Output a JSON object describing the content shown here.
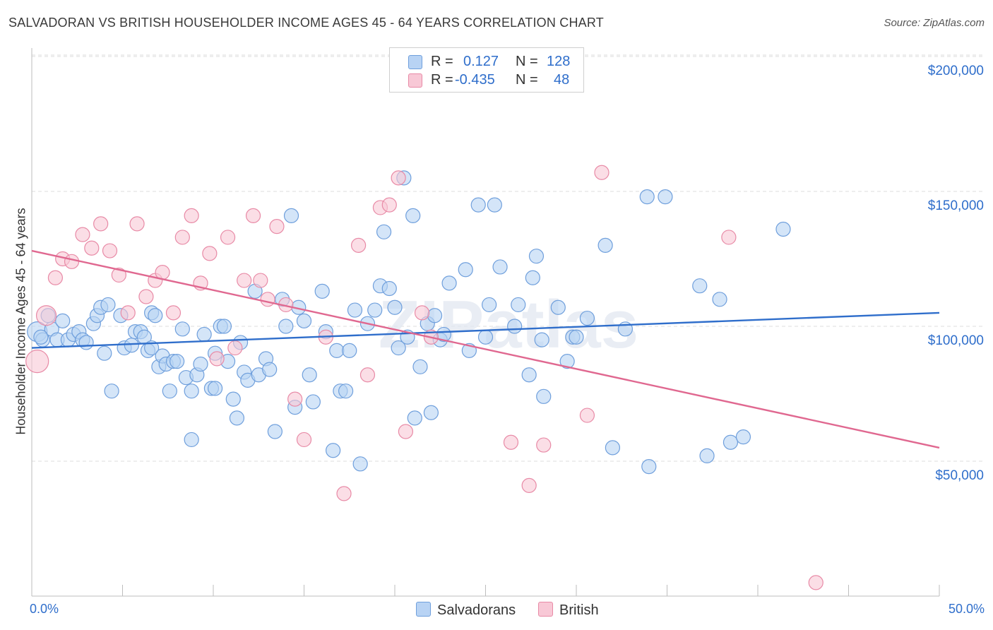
{
  "header": {
    "title": "SALVADORAN VS BRITISH HOUSEHOLDER INCOME AGES 45 - 64 YEARS CORRELATION CHART",
    "source": "Source: ZipAtlas.com"
  },
  "legend_box": {
    "rows": [
      {
        "r_label": "R =",
        "r_value": "0.127",
        "n_label": "N =",
        "n_value": "128"
      },
      {
        "r_label": "R =",
        "r_value": "-0.435",
        "n_label": "N =",
        "n_value": "48"
      }
    ]
  },
  "bottom_legend": {
    "salvadorans": "Salvadorans",
    "british": "British"
  },
  "watermark": "ZIPatlas",
  "colors": {
    "salvadoran_fill": "#b8d3f4",
    "salvadoran_stroke": "#6f9fdc",
    "salvadoran_line": "#2f6ecb",
    "british_fill": "#f8c8d6",
    "british_stroke": "#e88aa6",
    "british_line": "#e06890",
    "axis_text": "#2f6ecb",
    "grid": "#dcdcdc"
  },
  "chart_data": {
    "type": "scatter",
    "title": "SALVADORAN VS BRITISH HOUSEHOLDER INCOME AGES 45 - 64 YEARS CORRELATION CHART",
    "xlabel": "",
    "ylabel": "Householder Income Ages 45 - 64 years",
    "xlim": [
      0,
      50
    ],
    "ylim": [
      0,
      210000
    ],
    "x_tick_labels": [
      "0.0%",
      "50.0%"
    ],
    "y_ticks": [
      50000,
      100000,
      150000,
      200000
    ],
    "y_tick_labels": [
      "$50,000",
      "$100,000",
      "$150,000",
      "$200,000"
    ],
    "grid": true,
    "series": [
      {
        "name": "Salvadorans",
        "r": 0.127,
        "n": 128,
        "trend": [
          [
            0,
            92000
          ],
          [
            50,
            105000
          ]
        ],
        "points": [
          [
            0.3,
            98000,
            14
          ],
          [
            0.6,
            95000,
            10
          ],
          [
            0.9,
            104000,
            10
          ],
          [
            1.1,
            99000,
            10
          ],
          [
            1.4,
            95000,
            10
          ],
          [
            1.7,
            102000,
            10
          ],
          [
            2.0,
            95000,
            10
          ],
          [
            2.3,
            97000,
            10
          ],
          [
            2.6,
            98000,
            10
          ],
          [
            2.8,
            95000,
            10
          ],
          [
            3.0,
            94000,
            10
          ],
          [
            3.4,
            101000,
            10
          ],
          [
            3.6,
            104000,
            10
          ],
          [
            3.8,
            107000,
            10
          ],
          [
            4.0,
            90000,
            10
          ],
          [
            4.2,
            108000,
            10
          ],
          [
            4.4,
            76000,
            10
          ],
          [
            4.9,
            104000,
            10
          ],
          [
            5.1,
            92000,
            10
          ],
          [
            5.5,
            93000,
            10
          ],
          [
            5.7,
            98000,
            10
          ],
          [
            6.0,
            98000,
            10
          ],
          [
            6.2,
            96000,
            10
          ],
          [
            6.4,
            91000,
            10
          ],
          [
            6.6,
            92000,
            10
          ],
          [
            6.6,
            105000,
            10
          ],
          [
            6.8,
            104000,
            10
          ],
          [
            7.0,
            85000,
            10
          ],
          [
            7.2,
            89000,
            10
          ],
          [
            7.4,
            86000,
            10
          ],
          [
            7.6,
            76000,
            10
          ],
          [
            7.8,
            87000,
            10
          ],
          [
            8.0,
            87000,
            10
          ],
          [
            8.3,
            99000,
            10
          ],
          [
            8.5,
            81000,
            10
          ],
          [
            8.8,
            76000,
            10
          ],
          [
            8.8,
            58000,
            10
          ],
          [
            9.1,
            82000,
            10
          ],
          [
            9.3,
            86000,
            10
          ],
          [
            9.5,
            97000,
            10
          ],
          [
            9.9,
            77000,
            10
          ],
          [
            10.1,
            90000,
            10
          ],
          [
            10.1,
            77000,
            10
          ],
          [
            10.4,
            100000,
            10
          ],
          [
            10.6,
            100000,
            10
          ],
          [
            10.8,
            87000,
            10
          ],
          [
            11.1,
            73000,
            10
          ],
          [
            11.3,
            66000,
            10
          ],
          [
            11.5,
            94000,
            10
          ],
          [
            11.7,
            83000,
            10
          ],
          [
            11.9,
            80000,
            10
          ],
          [
            12.3,
            113000,
            10
          ],
          [
            12.5,
            82000,
            10
          ],
          [
            12.9,
            88000,
            10
          ],
          [
            13.1,
            84000,
            10
          ],
          [
            13.4,
            61000,
            10
          ],
          [
            13.8,
            110000,
            10
          ],
          [
            14.0,
            100000,
            10
          ],
          [
            14.3,
            141000,
            10
          ],
          [
            14.5,
            70000,
            10
          ],
          [
            14.7,
            107000,
            10
          ],
          [
            15.0,
            102000,
            10
          ],
          [
            15.3,
            82000,
            10
          ],
          [
            15.5,
            72000,
            10
          ],
          [
            16.0,
            113000,
            10
          ],
          [
            16.2,
            98000,
            10
          ],
          [
            16.6,
            54000,
            10
          ],
          [
            16.8,
            91000,
            10
          ],
          [
            17.0,
            76000,
            10
          ],
          [
            17.3,
            76000,
            10
          ],
          [
            17.5,
            91000,
            10
          ],
          [
            17.8,
            106000,
            10
          ],
          [
            18.1,
            49000,
            10
          ],
          [
            18.5,
            101000,
            10
          ],
          [
            18.9,
            106000,
            10
          ],
          [
            19.2,
            115000,
            10
          ],
          [
            19.4,
            135000,
            10
          ],
          [
            19.7,
            114000,
            10
          ],
          [
            20.0,
            107000,
            10
          ],
          [
            20.2,
            92000,
            10
          ],
          [
            20.5,
            155000,
            10
          ],
          [
            20.7,
            96000,
            10
          ],
          [
            21.0,
            141000,
            10
          ],
          [
            21.1,
            66000,
            10
          ],
          [
            21.4,
            85000,
            10
          ],
          [
            21.8,
            101000,
            10
          ],
          [
            22.0,
            68000,
            10
          ],
          [
            22.2,
            104000,
            10
          ],
          [
            22.5,
            95000,
            10
          ],
          [
            22.7,
            97000,
            10
          ],
          [
            23.0,
            116000,
            10
          ],
          [
            23.9,
            121000,
            10
          ],
          [
            24.1,
            91000,
            10
          ],
          [
            24.6,
            145000,
            10
          ],
          [
            25.0,
            96000,
            10
          ],
          [
            25.2,
            108000,
            10
          ],
          [
            25.5,
            145000,
            10
          ],
          [
            25.8,
            122000,
            10
          ],
          [
            26.6,
            100000,
            10
          ],
          [
            26.8,
            108000,
            10
          ],
          [
            27.4,
            82000,
            10
          ],
          [
            27.6,
            118000,
            10
          ],
          [
            27.8,
            126000,
            10
          ],
          [
            28.1,
            95000,
            10
          ],
          [
            28.2,
            74000,
            10
          ],
          [
            29.0,
            107000,
            10
          ],
          [
            29.5,
            87000,
            10
          ],
          [
            29.8,
            96000,
            10
          ],
          [
            30.0,
            96000,
            10
          ],
          [
            30.6,
            103000,
            10
          ],
          [
            31.6,
            130000,
            10
          ],
          [
            32.0,
            55000,
            10
          ],
          [
            32.7,
            99000,
            10
          ],
          [
            33.9,
            148000,
            10
          ],
          [
            34.0,
            48000,
            10
          ],
          [
            34.9,
            148000,
            10
          ],
          [
            36.8,
            115000,
            10
          ],
          [
            37.2,
            52000,
            10
          ],
          [
            37.9,
            110000,
            10
          ],
          [
            38.5,
            57000,
            10
          ],
          [
            39.2,
            59000,
            10
          ],
          [
            41.4,
            136000,
            10
          ],
          [
            0.5,
            96000,
            10
          ]
        ]
      },
      {
        "name": "British",
        "r": -0.435,
        "n": 48,
        "trend": [
          [
            0,
            128000
          ],
          [
            50,
            55000
          ]
        ],
        "points": [
          [
            0.3,
            87000,
            16
          ],
          [
            0.8,
            104000,
            14
          ],
          [
            1.3,
            118000,
            10
          ],
          [
            1.7,
            125000,
            10
          ],
          [
            2.2,
            124000,
            10
          ],
          [
            2.8,
            134000,
            10
          ],
          [
            3.3,
            129000,
            10
          ],
          [
            3.8,
            138000,
            10
          ],
          [
            4.3,
            128000,
            10
          ],
          [
            4.8,
            119000,
            10
          ],
          [
            5.3,
            105000,
            10
          ],
          [
            5.8,
            138000,
            10
          ],
          [
            6.3,
            111000,
            10
          ],
          [
            6.8,
            117000,
            10
          ],
          [
            7.2,
            120000,
            10
          ],
          [
            7.8,
            105000,
            10
          ],
          [
            8.3,
            133000,
            10
          ],
          [
            8.8,
            141000,
            10
          ],
          [
            9.3,
            116000,
            10
          ],
          [
            9.8,
            127000,
            10
          ],
          [
            10.2,
            88000,
            10
          ],
          [
            10.8,
            133000,
            10
          ],
          [
            11.2,
            92000,
            10
          ],
          [
            11.7,
            117000,
            10
          ],
          [
            12.2,
            141000,
            10
          ],
          [
            12.6,
            117000,
            10
          ],
          [
            13.0,
            110000,
            10
          ],
          [
            13.5,
            137000,
            10
          ],
          [
            14.0,
            108000,
            10
          ],
          [
            14.5,
            73000,
            10
          ],
          [
            15.0,
            58000,
            10
          ],
          [
            16.2,
            96000,
            10
          ],
          [
            17.2,
            38000,
            10
          ],
          [
            18.0,
            130000,
            10
          ],
          [
            18.5,
            82000,
            10
          ],
          [
            19.2,
            144000,
            10
          ],
          [
            19.7,
            145000,
            10
          ],
          [
            20.2,
            155000,
            10
          ],
          [
            20.6,
            61000,
            10
          ],
          [
            21.5,
            105000,
            10
          ],
          [
            22.0,
            96000,
            10
          ],
          [
            26.4,
            57000,
            10
          ],
          [
            27.4,
            41000,
            10
          ],
          [
            28.2,
            56000,
            10
          ],
          [
            30.6,
            67000,
            10
          ],
          [
            31.4,
            157000,
            10
          ],
          [
            38.4,
            133000,
            10
          ],
          [
            43.2,
            5000,
            10
          ]
        ]
      }
    ]
  }
}
